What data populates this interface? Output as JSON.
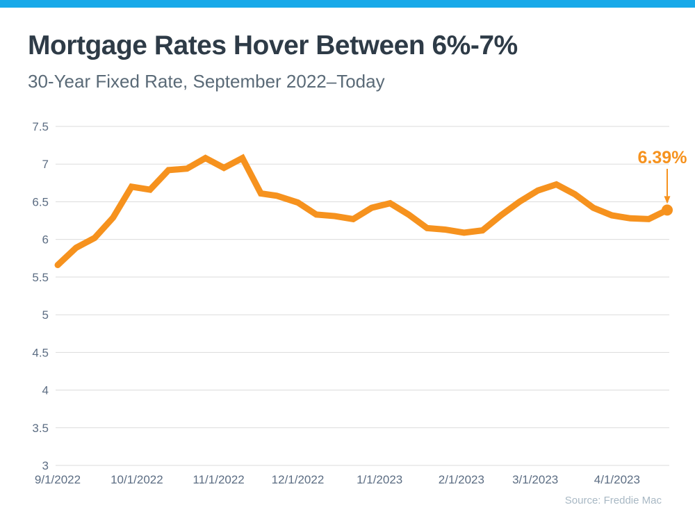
{
  "page": {
    "accent_bar_color": "#18A9E9"
  },
  "chart_data": {
    "type": "line",
    "title": "Mortgage Rates Hover Between 6%-7%",
    "subtitle": "30-Year Fixed Rate, September 2022–Today",
    "source": "Source: Freddie Mac",
    "grid": true,
    "legend": "none",
    "ylim": [
      3,
      7.5
    ],
    "y_ticks": [
      7.5,
      7,
      6.5,
      6,
      5.5,
      5,
      4.5,
      4,
      3.5,
      3
    ],
    "x_ticks": [
      "9/1/2022",
      "10/1/2022",
      "11/1/2022",
      "12/1/2022",
      "1/1/2023",
      "2/1/2023",
      "3/1/2023",
      "4/1/2023"
    ],
    "series": [
      {
        "name": "30-Year Fixed Rate",
        "color": "#F6921E",
        "x": [
          "9/1/2022",
          "9/8/2022",
          "9/15/2022",
          "9/22/2022",
          "9/29/2022",
          "10/6/2022",
          "10/13/2022",
          "10/20/2022",
          "10/27/2022",
          "11/3/2022",
          "11/10/2022",
          "11/17/2022",
          "11/23/2022",
          "12/1/2022",
          "12/8/2022",
          "12/15/2022",
          "12/22/2022",
          "12/29/2022",
          "1/5/2023",
          "1/12/2023",
          "1/19/2023",
          "1/26/2023",
          "2/2/2023",
          "2/9/2023",
          "2/16/2023",
          "2/23/2023",
          "3/2/2023",
          "3/9/2023",
          "3/16/2023",
          "3/23/2023",
          "3/30/2023",
          "4/6/2023",
          "4/13/2023",
          "4/20/2023"
        ],
        "values": [
          5.66,
          5.89,
          6.02,
          6.29,
          6.7,
          6.66,
          6.92,
          6.94,
          7.08,
          6.95,
          7.08,
          6.61,
          6.58,
          6.49,
          6.33,
          6.31,
          6.27,
          6.42,
          6.48,
          6.33,
          6.15,
          6.13,
          6.09,
          6.12,
          6.32,
          6.5,
          6.65,
          6.73,
          6.6,
          6.42,
          6.32,
          6.28,
          6.27,
          6.39
        ]
      }
    ],
    "annotation": {
      "label": "6.39%",
      "x": "4/20/2023",
      "value": 6.39
    },
    "colors": {
      "title": "#2E3B47",
      "subtitle": "#5A6A77",
      "axis_label": "#5C6D83",
      "grid": "#DBDBDB",
      "line": "#F6921E",
      "annotation": "#F6921E",
      "source": "#A8B8C4"
    }
  }
}
